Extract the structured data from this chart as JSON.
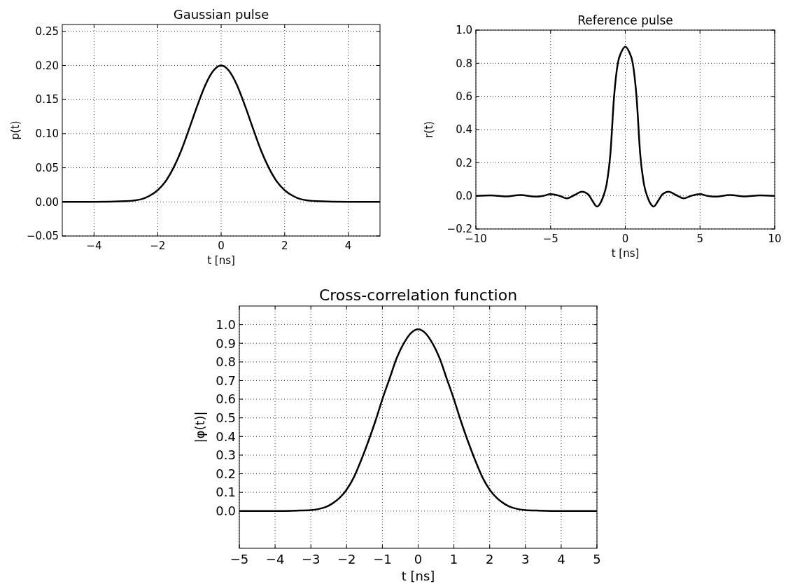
{
  "chart_data": [
    {
      "type": "line",
      "title": "Gaussian pulse",
      "xlabel": "t [ns]",
      "ylabel": "p(t)",
      "xlim": [
        -5,
        5
      ],
      "ylim": [
        -0.05,
        0.26
      ],
      "xticks": [
        {
          "value": -4,
          "label": "−4"
        },
        {
          "value": -2,
          "label": "−2"
        },
        0,
        2,
        4
      ],
      "yticks": [
        {
          "value": -0.05,
          "label": "−0.05"
        },
        {
          "value": 0,
          "label": "0.00"
        },
        0.05,
        {
          "value": 0.1,
          "label": "0.10"
        },
        0.15,
        {
          "value": 0.2,
          "label": "0.20"
        },
        0.25
      ],
      "grid": true,
      "line_style": "solid",
      "marker": "none",
      "x": [
        -5,
        -4,
        -3,
        -2.5,
        -2.25,
        -2,
        -1.75,
        -1.5,
        -1.25,
        -1,
        -0.75,
        -0.5,
        -0.25,
        0,
        0.25,
        0.5,
        0.75,
        1,
        1.25,
        1.5,
        1.75,
        2,
        2.25,
        2.5,
        3,
        4,
        5
      ],
      "series": [
        {
          "color": "#000000",
          "values": [
            0,
            0,
            0.001,
            0.004,
            0.009,
            0.017,
            0.03,
            0.05,
            0.076,
            0.108,
            0.141,
            0.171,
            0.192,
            0.2,
            0.192,
            0.171,
            0.141,
            0.108,
            0.076,
            0.05,
            0.03,
            0.017,
            0.009,
            0.004,
            0.001,
            0,
            0
          ]
        }
      ]
    },
    {
      "type": "line",
      "title": "Reference pulse",
      "xlabel": "t [ns]",
      "ylabel": "r(t)",
      "xlim": [
        -10,
        10
      ],
      "ylim": [
        -0.2,
        1.0
      ],
      "xticks": [
        {
          "value": -10,
          "label": "−10"
        },
        {
          "value": -5,
          "label": "−5"
        },
        0,
        5,
        10
      ],
      "yticks": [
        {
          "value": -0.2,
          "label": "−0.2"
        },
        {
          "value": 0,
          "label": "0.0"
        },
        0.2,
        0.4,
        0.6,
        0.8,
        {
          "value": 1,
          "label": "1.0"
        }
      ],
      "grid": true,
      "line_style": "solid",
      "marker": "none",
      "x": [
        -10,
        -9,
        -8,
        -7,
        -6,
        -5.5,
        -5,
        -4.4,
        -3.9,
        -3.4,
        -2.9,
        -2.5,
        -2.2,
        -1.9,
        -1.75,
        -1.5,
        -1.25,
        -1,
        -0.75,
        -0.5,
        -0.25,
        0,
        0.25,
        0.5,
        0.75,
        1,
        1.25,
        1.5,
        1.75,
        1.9,
        2.2,
        2.5,
        2.9,
        3.4,
        3.9,
        4.4,
        5,
        5.5,
        6,
        7,
        8,
        9,
        10
      ],
      "series": [
        {
          "color": "#000000",
          "values": [
            0,
            0.003,
            -0.003,
            0.005,
            -0.005,
            0,
            0.01,
            0,
            -0.015,
            0.005,
            0.025,
            0.01,
            -0.03,
            -0.065,
            -0.055,
            -0.01,
            0.07,
            0.25,
            0.6,
            0.8,
            0.87,
            0.9,
            0.87,
            0.8,
            0.6,
            0.25,
            0.07,
            -0.01,
            -0.055,
            -0.065,
            -0.03,
            0.01,
            0.025,
            0.005,
            -0.015,
            0,
            0.01,
            0,
            -0.005,
            0.005,
            -0.003,
            0.003,
            0
          ]
        }
      ]
    },
    {
      "type": "line",
      "title": "Cross-correlation function",
      "xlabel": "t [ns]",
      "ylabel": "|φ(t)|",
      "xlim": [
        -5,
        5
      ],
      "ylim": [
        -0.2,
        1.1
      ],
      "xticks": [
        {
          "value": -5,
          "label": "−5"
        },
        {
          "value": -4,
          "label": "−4"
        },
        {
          "value": -3,
          "label": "−3"
        },
        {
          "value": -2,
          "label": "−2"
        },
        {
          "value": -1,
          "label": "−1"
        },
        0,
        1,
        2,
        3,
        4,
        5
      ],
      "yticks": [
        {
          "value": 0,
          "label": "0.0"
        },
        0.1,
        0.2,
        0.3,
        0.4,
        0.5,
        0.6,
        0.7,
        0.8,
        0.9,
        {
          "value": 1,
          "label": "1.0"
        }
      ],
      "grid": true,
      "line_style": "solid",
      "marker": "none",
      "x": [
        -5,
        -4,
        -3.4,
        -3,
        -2.8,
        -2.6,
        -2.4,
        -2.2,
        -2,
        -1.8,
        -1.6,
        -1.4,
        -1.2,
        -1,
        -0.8,
        -0.6,
        -0.4,
        -0.2,
        0,
        0.2,
        0.4,
        0.6,
        0.8,
        1,
        1.2,
        1.4,
        1.6,
        1.8,
        2,
        2.2,
        2.4,
        2.6,
        2.8,
        3,
        3.4,
        4,
        5
      ],
      "series": [
        {
          "color": "#000000",
          "values": [
            0,
            0,
            0.002,
            0.005,
            0.01,
            0.02,
            0.04,
            0.07,
            0.115,
            0.18,
            0.27,
            0.37,
            0.48,
            0.6,
            0.71,
            0.82,
            0.9,
            0.955,
            0.975,
            0.955,
            0.9,
            0.82,
            0.71,
            0.6,
            0.48,
            0.37,
            0.27,
            0.18,
            0.115,
            0.07,
            0.04,
            0.02,
            0.01,
            0.005,
            0.002,
            0,
            0
          ]
        }
      ]
    }
  ]
}
